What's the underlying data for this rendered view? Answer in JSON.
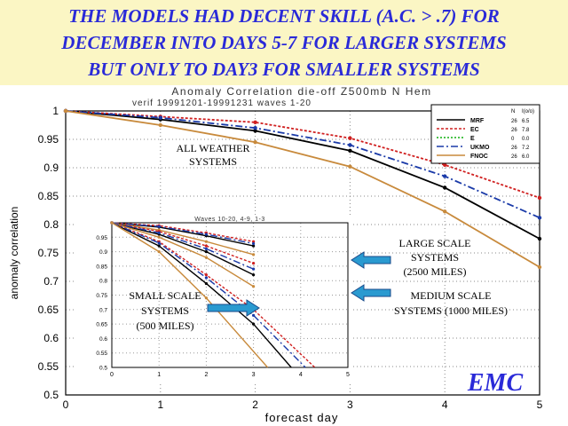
{
  "headline": [
    "THE MODELS HAD DECENT SKILL (A.C. > .7) FOR",
    "DECEMBER INTO DAYS 5-7 FOR LARGER SYSTEMS",
    "BUT ONLY TO DAY3 FOR SMALLER SYSTEMS"
  ],
  "chart_data": {
    "type": "line",
    "title": "Anomaly Correlation die-off   Z500mb N Hem",
    "subtitle": "verif 19991201-19991231  waves 1-20",
    "xlabel": "forecast day",
    "ylabel": "anomaly correlation",
    "xlim": [
      0,
      5
    ],
    "ylim": [
      0.5,
      1
    ],
    "xticks": [
      "0",
      "1",
      "2",
      "3",
      "4",
      "5"
    ],
    "yticks": [
      "0.5",
      "0.55",
      "0.6",
      "0.65",
      "0.7",
      "0.75",
      "0.8",
      "0.85",
      "0.9",
      "0.95",
      "1"
    ],
    "grid": true,
    "legend": {
      "placement": "top-right",
      "header": [
        "N",
        "I(o/o)"
      ],
      "entries": [
        {
          "name": "MRF",
          "n": "26",
          "i": "6.5",
          "color": "#000000",
          "dash": "",
          "marker": ""
        },
        {
          "name": "EC",
          "n": "26",
          "i": "7.8",
          "color": "#d02020",
          "dash": "3 2",
          "marker": "triangle"
        },
        {
          "name": "E",
          "n": "0",
          "i": "0.0",
          "color": "#10b010",
          "dash": "2 2",
          "marker": "x"
        },
        {
          "name": "UKMO",
          "n": "26",
          "i": "7.2",
          "color": "#1a3aa8",
          "dash": "8 3 2 3",
          "marker": "diamond"
        },
        {
          "name": "FNOC",
          "n": "26",
          "i": "6.0",
          "color": "#c88a3c",
          "dash": "",
          "marker": "square"
        }
      ]
    },
    "series": [
      {
        "name": "MRF",
        "x": [
          0,
          1,
          2,
          3,
          4,
          5
        ],
        "values": [
          1.0,
          0.985,
          0.965,
          0.93,
          0.865,
          0.775
        ]
      },
      {
        "name": "EC",
        "x": [
          0,
          1,
          2,
          3,
          4,
          5
        ],
        "values": [
          1.0,
          0.99,
          0.98,
          0.952,
          0.905,
          0.847
        ]
      },
      {
        "name": "UKMO",
        "x": [
          0,
          1,
          2,
          3,
          4,
          5
        ],
        "values": [
          1.0,
          0.988,
          0.97,
          0.94,
          0.885,
          0.812
        ]
      },
      {
        "name": "FNOC",
        "x": [
          0,
          1,
          2,
          3,
          4,
          5
        ],
        "values": [
          1.0,
          0.975,
          0.945,
          0.902,
          0.823,
          0.725
        ]
      }
    ],
    "inset": {
      "title": "Waves 10-20, 4-9, 1-3",
      "xlim": [
        0,
        5
      ],
      "ylim": [
        0.5,
        1
      ],
      "xticks": [
        "0",
        "1",
        "2",
        "3",
        "4",
        "5"
      ],
      "yticks": [
        "0.5",
        "0.55",
        "0.6",
        "0.65",
        "0.7",
        "0.75",
        "0.8",
        "0.85",
        "0.9",
        "0.95"
      ],
      "groups": [
        {
          "name": "large",
          "series": [
            {
              "name": "MRF",
              "x": [
                0,
                1,
                2,
                3
              ],
              "values": [
                1.0,
                0.985,
                0.955,
                0.92
              ]
            },
            {
              "name": "EC",
              "x": [
                0,
                1,
                2,
                3
              ],
              "values": [
                1.0,
                0.99,
                0.965,
                0.935
              ]
            },
            {
              "name": "UKMO",
              "x": [
                0,
                1,
                2,
                3
              ],
              "values": [
                1.0,
                0.987,
                0.96,
                0.928
              ]
            },
            {
              "name": "FNOC",
              "x": [
                0,
                1,
                2,
                3
              ],
              "values": [
                1.0,
                0.975,
                0.935,
                0.89
              ]
            }
          ]
        },
        {
          "name": "medium",
          "series": [
            {
              "name": "MRF",
              "x": [
                0,
                1,
                2,
                3
              ],
              "values": [
                1.0,
                0.96,
                0.9,
                0.82
              ]
            },
            {
              "name": "EC",
              "x": [
                0,
                1,
                2,
                3
              ],
              "values": [
                1.0,
                0.97,
                0.92,
                0.86
              ]
            },
            {
              "name": "UKMO",
              "x": [
                0,
                1,
                2,
                3
              ],
              "values": [
                1.0,
                0.965,
                0.91,
                0.84
              ]
            },
            {
              "name": "FNOC",
              "x": [
                0,
                1,
                2,
                3
              ],
              "values": [
                1.0,
                0.95,
                0.88,
                0.78
              ]
            }
          ]
        },
        {
          "name": "small",
          "series": [
            {
              "name": "MRF",
              "x": [
                0,
                1,
                2,
                3,
                3.8
              ],
              "values": [
                1.0,
                0.92,
                0.79,
                0.65,
                0.5
              ]
            },
            {
              "name": "EC",
              "x": [
                0,
                1,
                2,
                3,
                4.3
              ],
              "values": [
                1.0,
                0.935,
                0.82,
                0.7,
                0.5
              ]
            },
            {
              "name": "UKMO",
              "x": [
                0,
                1,
                2,
                3,
                4.1
              ],
              "values": [
                1.0,
                0.93,
                0.81,
                0.68,
                0.5
              ]
            },
            {
              "name": "FNOC",
              "x": [
                0,
                1,
                2,
                3.3
              ],
              "values": [
                1.0,
                0.9,
                0.74,
                0.5
              ]
            }
          ]
        }
      ]
    },
    "annotations": [
      {
        "name": "all-weather-label",
        "lines": [
          "ALL WEATHER",
          "SYSTEMS"
        ]
      },
      {
        "name": "large-scale-label",
        "lines": [
          "LARGE SCALE",
          "SYSTEMS",
          "(2500 MILES)"
        ]
      },
      {
        "name": "medium-scale-label",
        "lines": [
          "MEDIUM SCALE",
          "SYSTEMS (1000 MILES)"
        ]
      },
      {
        "name": "small-scale-label",
        "lines": [
          "SMALL SCALE",
          "SYSTEMS",
          "(500 MILES)"
        ]
      }
    ],
    "watermark": "EMC"
  },
  "colors": {
    "banner_bg": "#fbf6c4",
    "headline": "#2a2ad8",
    "arrow": "#2a9ad0",
    "watermark": "#2a2ad8"
  }
}
